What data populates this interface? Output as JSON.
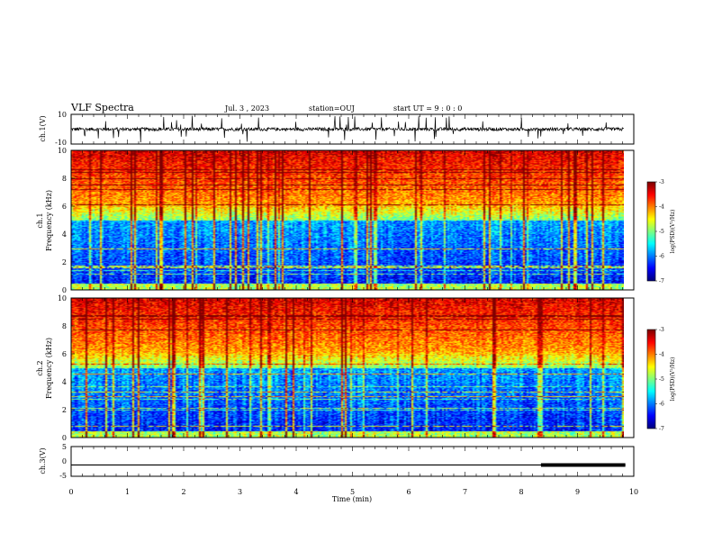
{
  "header": {
    "title": "VLF Spectra",
    "date": "Jul. 3 , 2023",
    "station": "station=OUJ",
    "start": "start UT = 9 : 0 : 0"
  },
  "chart_data": [
    {
      "type": "line",
      "panel": "ch1-waveform",
      "ylabel": "ch.1(V)",
      "ylim": [
        -10,
        10
      ],
      "yticks": [
        "10",
        "-10"
      ],
      "xlim": [
        0,
        10
      ],
      "series": [
        {
          "values_description_only": false,
          "baseline": 0
        }
      ]
    },
    {
      "type": "heatmap",
      "panel": "ch1-spectrogram",
      "ylabel": "ch.1\nFrequency (kHz)",
      "ylabel_line1": "ch.1",
      "ylabel_line2": "Frequency (kHz)",
      "ylim": [
        0,
        10
      ],
      "yticks": [
        "0",
        "2",
        "4",
        "6",
        "8",
        "10"
      ],
      "xlim": [
        0,
        10
      ],
      "colorbar": {
        "label": "log(PSD)(V²/Hz)",
        "range": [
          -7,
          -3
        ],
        "ticks": [
          "-3",
          "-4",
          "-5",
          "-6",
          "-7"
        ]
      }
    },
    {
      "type": "heatmap",
      "panel": "ch2-spectrogram",
      "ylabel_line1": "ch.2",
      "ylabel_line2": "Frequency (kHz)",
      "ylim": [
        0,
        10
      ],
      "yticks": [
        "0",
        "2",
        "4",
        "6",
        "8",
        "10"
      ],
      "xlim": [
        0,
        10
      ],
      "colorbar": {
        "label": "log(PSD)(V²/Hz)",
        "range": [
          -7,
          -3
        ],
        "ticks": [
          "-3",
          "-4",
          "-5",
          "-6",
          "-7"
        ]
      }
    },
    {
      "type": "line",
      "panel": "ch3-waveform",
      "ylabel": "ch.3(V)",
      "ylim": [
        -5,
        5
      ],
      "yticks": [
        "5",
        "0",
        "-5"
      ],
      "xlim": [
        0,
        10
      ],
      "series": [
        {
          "x": [
            0,
            8.35,
            8.35,
            9.85
          ],
          "y": [
            -1.2,
            -1.2,
            -1.2,
            -1.2
          ]
        }
      ],
      "thick_segment": [
        8.35,
        9.85
      ]
    }
  ],
  "xaxis": {
    "label": "Time (min)",
    "ticks": [
      "0",
      "1",
      "2",
      "3",
      "4",
      "5",
      "6",
      "7",
      "8",
      "9",
      "10"
    ]
  }
}
